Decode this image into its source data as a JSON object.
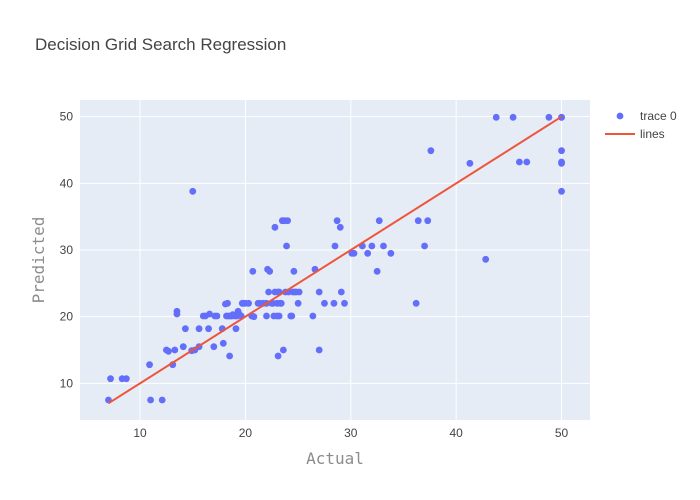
{
  "chart_data": {
    "type": "scatter",
    "title": "Decision Grid Search Regression",
    "xlabel": "Actual",
    "ylabel": "Predicted",
    "xlim": [
      4.3,
      52.7
    ],
    "ylim": [
      4.5,
      52.5
    ],
    "xticks": [
      10,
      20,
      30,
      40,
      50
    ],
    "yticks": [
      10,
      20,
      30,
      40,
      50
    ],
    "grid": true,
    "legend_position": "top-right",
    "colors": {
      "plot_bg": "#e5ecf6",
      "grid": "#ffffff",
      "points": "#636efa",
      "line": "#ef553b"
    },
    "series": [
      {
        "name": "trace 0",
        "mode": "markers",
        "x": [
          7.0,
          7.2,
          8.3,
          8.7,
          10.9,
          11.0,
          12.1,
          12.5,
          12.7,
          13.1,
          13.3,
          13.5,
          13.5,
          14.1,
          14.3,
          14.9,
          15.0,
          15.2,
          15.6,
          15.6,
          16.0,
          16.2,
          16.5,
          16.6,
          17.0,
          17.1,
          17.3,
          17.8,
          17.9,
          18.1,
          18.2,
          18.3,
          18.4,
          18.5,
          18.6,
          18.7,
          18.8,
          19.0,
          19.1,
          19.2,
          19.3,
          19.4,
          19.6,
          19.7,
          19.8,
          20.0,
          20.3,
          20.6,
          20.7,
          20.8,
          21.2,
          21.4,
          21.7,
          22.0,
          22.0,
          22.1,
          22.2,
          22.3,
          22.5,
          22.6,
          22.7,
          22.8,
          22.8,
          23.0,
          23.0,
          23.1,
          23.1,
          23.2,
          23.2,
          23.3,
          23.4,
          23.5,
          23.6,
          23.7,
          23.8,
          23.9,
          24.0,
          24.1,
          24.3,
          24.4,
          24.5,
          24.6,
          24.7,
          24.8,
          25.0,
          25.1,
          26.4,
          26.6,
          27.0,
          27.0,
          27.5,
          28.4,
          28.5,
          28.7,
          29.0,
          29.1,
          29.4,
          30.1,
          30.3,
          31.1,
          31.6,
          32.0,
          32.5,
          32.7,
          33.1,
          33.8,
          36.2,
          36.4,
          37.0,
          37.3,
          37.6,
          41.3,
          42.8,
          43.8,
          45.4,
          46.0,
          46.7,
          48.8,
          50.0,
          50.0,
          50.0,
          50.0,
          50.0,
          50.0
        ],
        "y": [
          7.5,
          10.7,
          10.7,
          10.7,
          12.8,
          7.5,
          7.5,
          15.0,
          14.8,
          12.8,
          15.0,
          20.8,
          20.4,
          15.5,
          18.2,
          14.9,
          38.8,
          15.0,
          18.2,
          15.5,
          20.1,
          20.1,
          18.2,
          20.4,
          15.5,
          20.1,
          20.1,
          18.2,
          16.0,
          21.9,
          20.1,
          22.0,
          20.1,
          14.1,
          20.1,
          20.1,
          20.3,
          20.1,
          18.2,
          20.1,
          20.8,
          20.4,
          20.1,
          22.0,
          22.0,
          22.0,
          22.0,
          20.1,
          26.8,
          20.0,
          22.0,
          22.0,
          22.0,
          20.1,
          22.0,
          27.1,
          23.7,
          26.8,
          22.0,
          22.0,
          20.1,
          33.4,
          23.7,
          20.1,
          22.0,
          23.7,
          14.1,
          20.1,
          23.7,
          22.0,
          22.0,
          34.4,
          15.0,
          34.4,
          23.7,
          30.6,
          34.4,
          23.7,
          20.1,
          20.1,
          23.7,
          26.8,
          23.7,
          23.7,
          22.0,
          23.7,
          20.1,
          27.1,
          15.0,
          23.7,
          22.0,
          22.0,
          30.6,
          34.4,
          33.4,
          23.7,
          22.0,
          29.5,
          29.5,
          30.6,
          29.5,
          30.6,
          26.8,
          34.4,
          30.6,
          29.5,
          22.0,
          34.4,
          30.6,
          34.4,
          44.9,
          43.0,
          28.6,
          49.9,
          49.9,
          43.2,
          43.2,
          49.9,
          49.9,
          49.9,
          44.9,
          43.0,
          43.2,
          38.8
        ]
      },
      {
        "name": "lines",
        "mode": "lines",
        "x": [
          7.0,
          50.0
        ],
        "y": [
          7.0,
          50.0
        ]
      }
    ]
  }
}
